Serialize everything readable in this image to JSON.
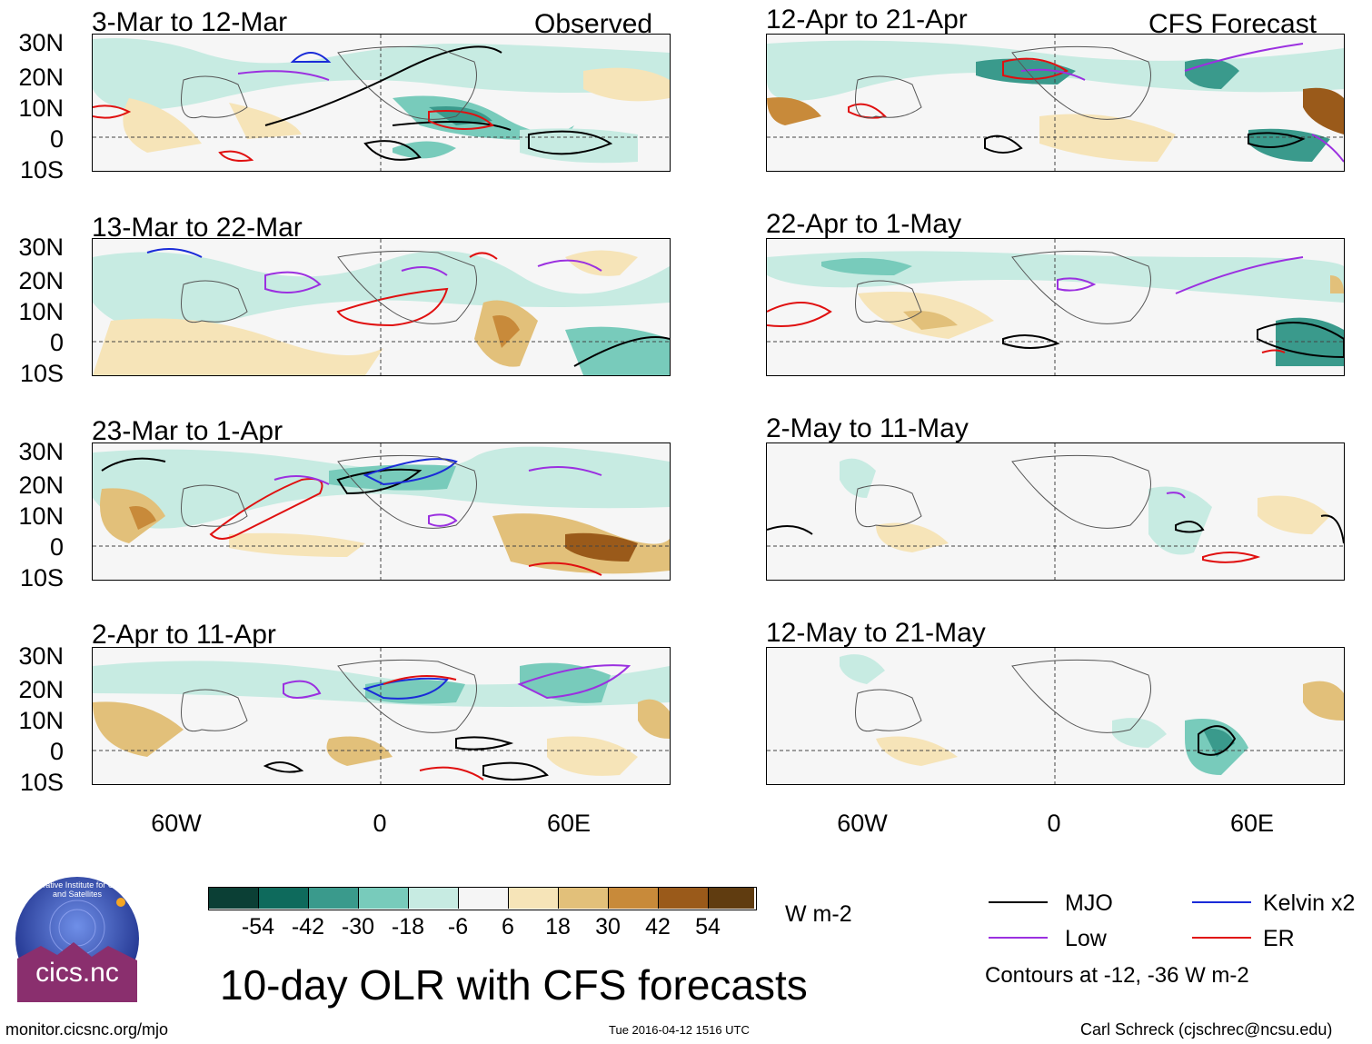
{
  "header": {
    "left_label": "Observed",
    "right_label": "CFS Forecast"
  },
  "observed_panels": [
    {
      "title": "3-Mar to 12-Mar"
    },
    {
      "title": "13-Mar to 22-Mar"
    },
    {
      "title": "23-Mar to 1-Apr"
    },
    {
      "title": "2-Apr to 11-Apr"
    }
  ],
  "forecast_panels": [
    {
      "title": "12-Apr to 21-Apr"
    },
    {
      "title": "22-Apr to 1-May"
    },
    {
      "title": "2-May to 11-May"
    },
    {
      "title": "12-May to 21-May"
    }
  ],
  "lat_labels": [
    "30N",
    "20N",
    "10N",
    "0",
    "10S"
  ],
  "lon_labels": [
    "60W",
    "0",
    "60E"
  ],
  "colorbar": {
    "unit": "W m-2",
    "colors": [
      "#0b3f35",
      "#0e6a5c",
      "#3a9a8c",
      "#78cbbb",
      "#c7ebe2",
      "#f5f5f5",
      "#f6e4b8",
      "#e2c07a",
      "#c88a3a",
      "#9a5a1a",
      "#603c10"
    ],
    "labels": [
      "-54",
      "-42",
      "-30",
      "-18",
      "-6",
      "6",
      "18",
      "30",
      "42",
      "54"
    ]
  },
  "legend": {
    "items": [
      {
        "label": "MJO",
        "color": "#000000"
      },
      {
        "label": "Kelvin x2",
        "color": "#1a2bd8"
      },
      {
        "label": "Low",
        "color": "#9b30e0"
      },
      {
        "label": "ER",
        "color": "#e01010"
      }
    ],
    "note": "Contours at -12, -36 W m-2"
  },
  "main_title": "10-day OLR with CFS forecasts",
  "logo_text": "cics.nc",
  "logo_ring_text": "Cooperative Institute for Climate and Satellites",
  "footer": {
    "url": "monitor.cicsnc.org/mjo",
    "timestamp": "Tue 2016-04-12 1516 UTC",
    "credit": "Carl Schreck (cjschrec@ncsu.edu)"
  }
}
